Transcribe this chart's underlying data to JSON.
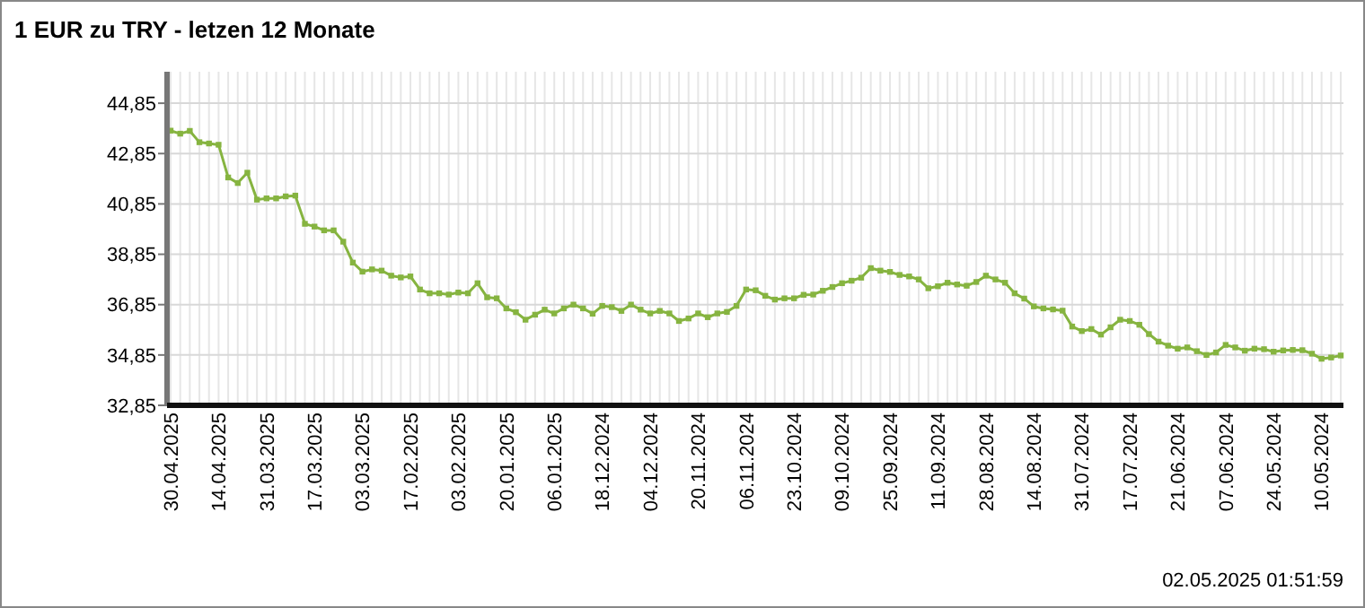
{
  "chart_data": {
    "type": "line",
    "title": "1 EUR zu TRY - letzen 12 Monate",
    "categories": [
      "30.04.2025",
      null,
      null,
      null,
      null,
      "14.04.2025",
      null,
      null,
      null,
      null,
      "31.03.2025",
      null,
      null,
      null,
      null,
      "17.03.2025",
      null,
      null,
      null,
      null,
      "03.03.2025",
      null,
      null,
      null,
      null,
      "17.02.2025",
      null,
      null,
      null,
      null,
      "03.02.2025",
      null,
      null,
      null,
      null,
      "20.01.2025",
      null,
      null,
      null,
      null,
      "06.01.2025",
      null,
      null,
      null,
      null,
      "18.12.2024",
      null,
      null,
      null,
      null,
      "04.12.2024",
      null,
      null,
      null,
      null,
      "20.11.2024",
      null,
      null,
      null,
      null,
      "06.11.2024",
      null,
      null,
      null,
      null,
      "23.10.2024",
      null,
      null,
      null,
      null,
      "09.10.2024",
      null,
      null,
      null,
      null,
      "25.09.2024",
      null,
      null,
      null,
      null,
      "11.09.2024",
      null,
      null,
      null,
      null,
      "28.08.2024",
      null,
      null,
      null,
      null,
      "14.08.2024",
      null,
      null,
      null,
      null,
      "31.07.2024",
      null,
      null,
      null,
      null,
      "17.07.2024",
      null,
      null,
      null,
      null,
      "21.06.2024",
      null,
      null,
      null,
      null,
      "07.06.2024",
      null,
      null,
      null,
      null,
      "24.05.2024",
      null,
      null,
      null,
      null,
      "10.05.2024",
      null,
      null
    ],
    "series": [
      {
        "color": "#86b440",
        "values": [
          43.76,
          43.64,
          43.75,
          43.3,
          43.25,
          43.2,
          41.9,
          41.68,
          42.09,
          41.02,
          41.07,
          41.07,
          41.15,
          41.18,
          40.06,
          39.95,
          39.8,
          39.8,
          39.35,
          38.52,
          38.16,
          38.25,
          38.2,
          38.0,
          37.93,
          37.97,
          37.45,
          37.3,
          37.3,
          37.25,
          37.33,
          37.3,
          37.7,
          37.14,
          37.1,
          36.7,
          36.55,
          36.25,
          36.45,
          36.65,
          36.5,
          36.7,
          36.85,
          36.7,
          36.49,
          36.8,
          36.75,
          36.6,
          36.85,
          36.65,
          36.5,
          36.6,
          36.5,
          36.2,
          36.3,
          36.5,
          36.35,
          36.5,
          36.56,
          36.8,
          37.45,
          37.42,
          37.2,
          37.05,
          37.1,
          37.1,
          37.24,
          37.25,
          37.4,
          37.55,
          37.7,
          37.8,
          37.92,
          38.3,
          38.2,
          38.15,
          38.03,
          37.97,
          37.85,
          37.5,
          37.58,
          37.72,
          37.65,
          37.6,
          37.75,
          38.0,
          37.85,
          37.72,
          37.3,
          37.09,
          36.78,
          36.7,
          36.66,
          36.61,
          35.98,
          35.8,
          35.88,
          35.66,
          35.95,
          36.25,
          36.2,
          36.05,
          35.68,
          35.38,
          35.22,
          35.1,
          35.15,
          35.0,
          34.85,
          34.95,
          35.25,
          35.15,
          35.02,
          35.1,
          35.08,
          34.98,
          35.03,
          35.05,
          35.04,
          34.9,
          34.7,
          34.75,
          34.83
        ]
      }
    ],
    "ylim": [
      32.85,
      46.1
    ],
    "yticks": [
      {
        "value": 32.85,
        "label": "32,85"
      },
      {
        "value": 34.85,
        "label": "34,85"
      },
      {
        "value": 36.85,
        "label": "36,85"
      },
      {
        "value": 38.85,
        "label": "38,85"
      },
      {
        "value": 40.85,
        "label": "40,85"
      },
      {
        "value": 42.85,
        "label": "42,85"
      },
      {
        "value": 44.85,
        "label": "44,85"
      }
    ],
    "grid": true,
    "marker": "square",
    "line_style": "solid",
    "annotations": [
      "02.05.2025 01:51:59"
    ]
  }
}
